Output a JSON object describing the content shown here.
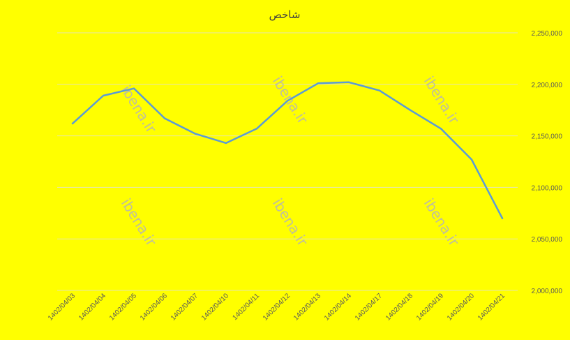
{
  "chart_data": {
    "type": "line",
    "title": "شاخص",
    "xlabel": "",
    "ylabel": "",
    "categories": [
      "1402/04/03",
      "1402/04/04",
      "1402/04/05",
      "1402/04/06",
      "1402/04/07",
      "1402/04/10",
      "1402/04/11",
      "1402/04/12",
      "1402/04/13",
      "1402/04/14",
      "1402/04/17",
      "1402/04/18",
      "1402/04/19",
      "1402/04/20",
      "1402/04/21"
    ],
    "series": [
      {
        "values": [
          2162000,
          2189000,
          2196000,
          2167000,
          2152000,
          2143000,
          2157000,
          2184000,
          2201000,
          2202000,
          2194000,
          2175000,
          2157000,
          2127000,
          2070000
        ]
      }
    ],
    "ylim": [
      2000000,
      2250000
    ],
    "yticks": [
      2000000,
      2050000,
      2100000,
      2150000,
      2200000,
      2250000
    ],
    "ytick_labels": [
      "2,000,000",
      "2,050,000",
      "2,100,000",
      "2,150,000",
      "2,200,000",
      "2,250,000"
    ],
    "y_axis_side": "right",
    "grid": true,
    "legend": "none"
  },
  "watermarks": [
    "ibena.ir",
    "ibena.ir",
    "ibena.ir",
    "ibena.ir",
    "ibena.ir",
    "ibena.ir"
  ],
  "colors": {
    "background": "#FFFF00",
    "series_line": "#5B9BD5",
    "gridline": "#E6E6B0",
    "watermark": "#B5B5B5"
  }
}
